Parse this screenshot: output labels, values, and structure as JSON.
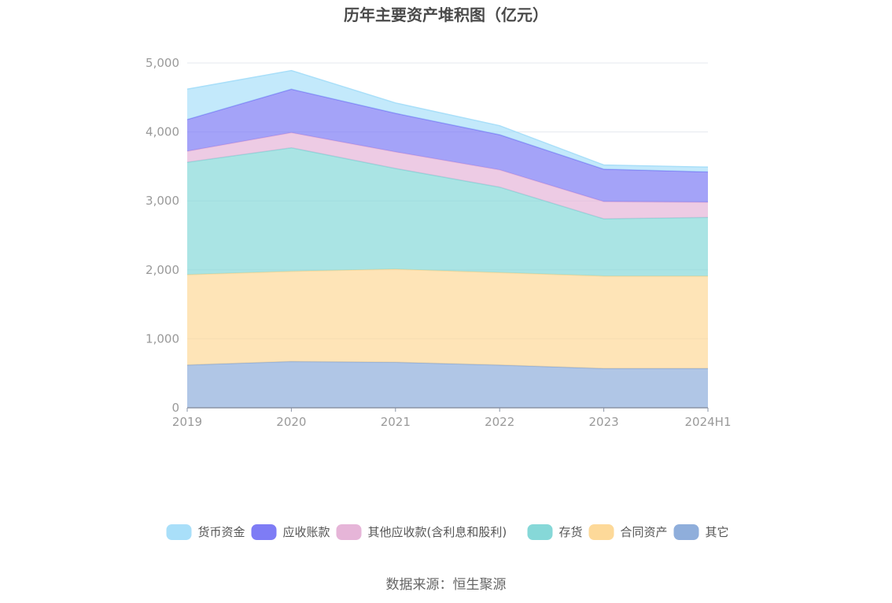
{
  "chart_data": {
    "type": "area",
    "stacked": true,
    "title": "历年主要资产堆积图（亿元）",
    "x": [
      "2019",
      "2020",
      "2021",
      "2022",
      "2023",
      "2024H1"
    ],
    "ylim": [
      0,
      5000
    ],
    "yticks": [
      "0",
      "1,000",
      "2,000",
      "3,000",
      "4,000",
      "5,000"
    ],
    "grid": true,
    "legend_position": "bottom",
    "series": [
      {
        "name": "其它",
        "color": "#8FAEDB",
        "values": [
          620,
          670,
          660,
          620,
          570,
          570
        ]
      },
      {
        "name": "合同资产",
        "color": "#FDD999",
        "values": [
          1310,
          1310,
          1350,
          1340,
          1340,
          1340
        ]
      },
      {
        "name": "存货",
        "color": "#86D8D8",
        "values": [
          1630,
          1790,
          1460,
          1240,
          830,
          850
        ]
      },
      {
        "name": "其他应收款(含利息和股利)",
        "color": "#E6B5D8",
        "values": [
          160,
          220,
          240,
          250,
          250,
          220
        ]
      },
      {
        "name": "应收账款",
        "color": "#7E7CF5",
        "values": [
          460,
          630,
          560,
          510,
          470,
          440
        ]
      },
      {
        "name": "货币资金",
        "color": "#A9DFF9",
        "values": [
          440,
          270,
          150,
          130,
          60,
          70
        ]
      }
    ]
  },
  "source_text": "数据来源：恒生聚源"
}
